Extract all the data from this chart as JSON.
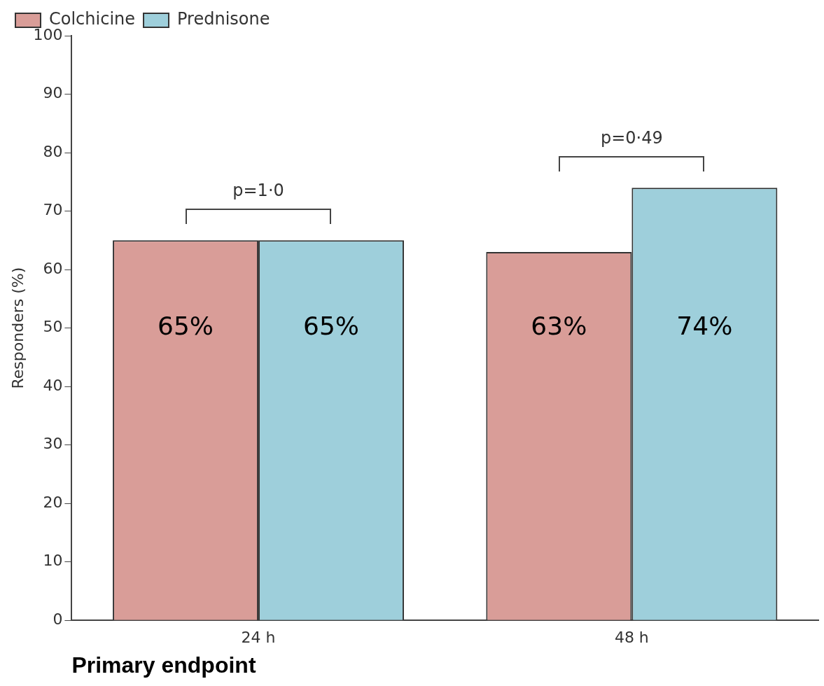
{
  "chart_data": {
    "type": "bar",
    "categories": [
      "24 h",
      "48 h"
    ],
    "series": [
      {
        "name": "Colchicine",
        "color": "#d99d98",
        "values": [
          65,
          63
        ],
        "value_labels": [
          "65%",
          "63%"
        ]
      },
      {
        "name": "Prednisone",
        "color": "#9ecfdb",
        "values": [
          65,
          74
        ],
        "value_labels": [
          "65%",
          "74%"
        ]
      }
    ],
    "ylabel": "Responders (%)",
    "xlabel": "Primary endpoint",
    "ylim": [
      0,
      100
    ],
    "yticks": [
      0,
      10,
      20,
      30,
      40,
      50,
      60,
      70,
      80,
      90,
      100
    ],
    "grid": false,
    "legend": "top left",
    "annotations": [
      "p=1·0",
      "p=0·49"
    ]
  }
}
